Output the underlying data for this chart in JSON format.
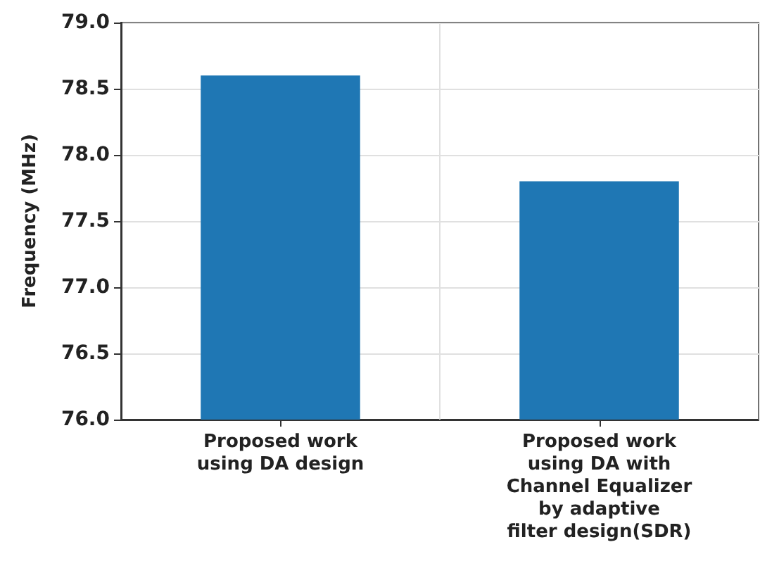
{
  "chart_data": {
    "type": "bar",
    "ylabel": "Frequency (MHz)",
    "categories": [
      "Proposed work\nusing DA design",
      "Proposed work\nusing DA with\nChannel Equalizer\nby adaptive\nfilter design(SDR)"
    ],
    "values": [
      78.6,
      77.8
    ],
    "color": "#1f77b4",
    "ylim": [
      76.0,
      79.0
    ],
    "yticks": [
      {
        "value": 76.0,
        "label": "76.0"
      },
      {
        "value": 76.5,
        "label": "76.5"
      },
      {
        "value": 77.0,
        "label": "77.0"
      },
      {
        "value": 77.5,
        "label": "77.5"
      },
      {
        "value": 78.0,
        "label": "78.0"
      },
      {
        "value": 78.5,
        "label": "78.5"
      },
      {
        "value": 79.0,
        "label": "79.0"
      }
    ],
    "grid": true
  }
}
